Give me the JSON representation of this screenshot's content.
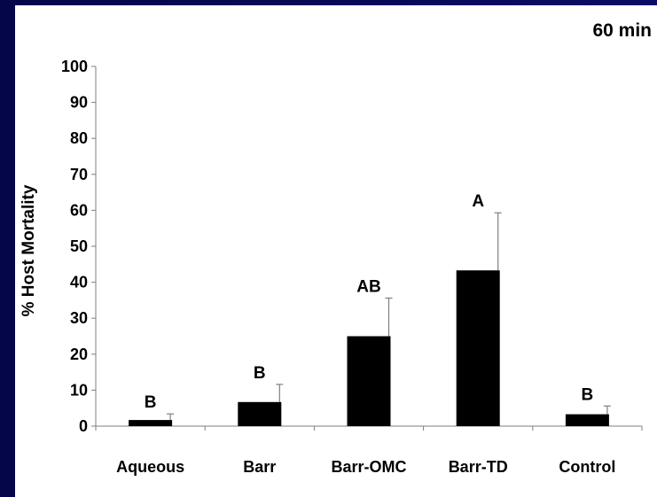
{
  "chart_data": {
    "type": "bar",
    "title": "60 min",
    "xlabel": "",
    "ylabel": "% Host Mortality",
    "ylim": [
      0,
      100
    ],
    "yticks": [
      0,
      10,
      20,
      30,
      40,
      50,
      60,
      70,
      80,
      90,
      100
    ],
    "categories": [
      "Aqueous",
      "Barr",
      "Barr-OMC",
      "Barr-TD",
      "Control"
    ],
    "values": [
      1.7,
      6.7,
      25,
      43.3,
      3.3
    ],
    "error_bars": [
      1.7,
      4.9,
      10.6,
      16,
      2.3
    ],
    "significance_letters": [
      "B",
      "B",
      "AB",
      "A",
      "B"
    ],
    "bar_color": "#000000",
    "grid": false,
    "legend": "none"
  }
}
